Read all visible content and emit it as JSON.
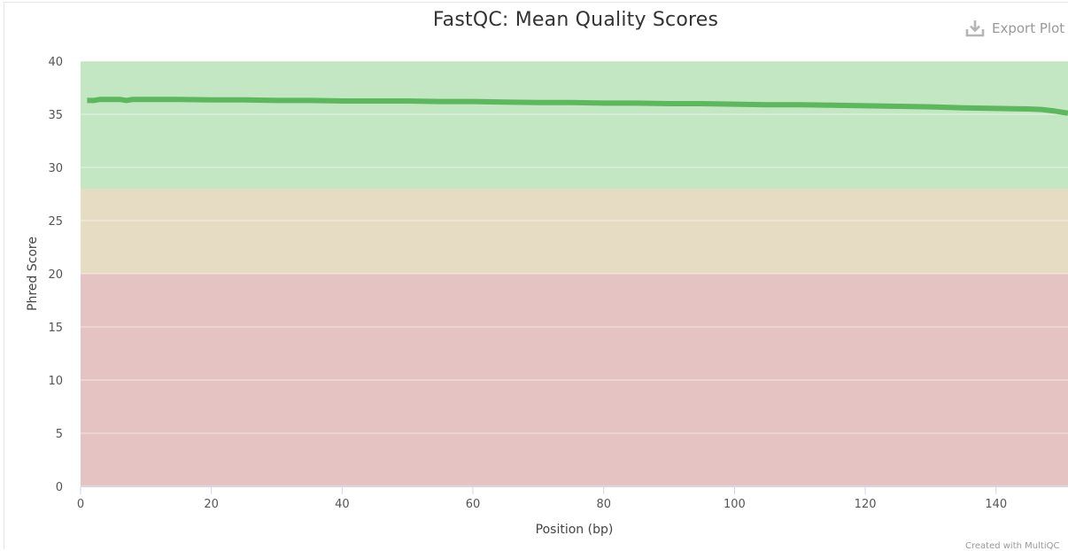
{
  "chart_data": {
    "type": "line",
    "title": "FastQC: Mean Quality Scores",
    "xlabel": "Position (bp)",
    "ylabel": "Phred Score",
    "xlim": [
      0,
      151
    ],
    "ylim": [
      0,
      40
    ],
    "x_ticks": [
      0,
      20,
      40,
      60,
      80,
      100,
      120,
      140
    ],
    "y_ticks": [
      0,
      5,
      10,
      15,
      20,
      25,
      30,
      35,
      40
    ],
    "grid": true,
    "legend": "none",
    "bands": [
      {
        "from": 28,
        "to": 40,
        "color": "#c3e6c3"
      },
      {
        "from": 20,
        "to": 28,
        "color": "#e6dcc3"
      },
      {
        "from": 0,
        "to": 20,
        "color": "#e6c3c3"
      }
    ],
    "series": [
      {
        "color": "#5cb85c",
        "x": [
          1,
          2,
          3,
          4,
          5,
          6,
          7,
          8,
          10,
          15,
          20,
          25,
          30,
          35,
          40,
          45,
          50,
          55,
          60,
          65,
          70,
          75,
          80,
          85,
          90,
          95,
          100,
          105,
          110,
          115,
          120,
          125,
          130,
          135,
          140,
          145,
          147,
          149,
          150,
          151
        ],
        "y": [
          36.3,
          36.3,
          36.4,
          36.4,
          36.4,
          36.4,
          36.3,
          36.4,
          36.4,
          36.4,
          36.35,
          36.35,
          36.3,
          36.3,
          36.25,
          36.25,
          36.25,
          36.2,
          36.2,
          36.15,
          36.1,
          36.1,
          36.05,
          36.05,
          36.0,
          36.0,
          35.95,
          35.9,
          35.9,
          35.85,
          35.8,
          35.75,
          35.7,
          35.6,
          35.55,
          35.5,
          35.45,
          35.3,
          35.2,
          35.1
        ]
      }
    ]
  },
  "toolbar": {
    "export_label": "Export Plot"
  },
  "footer": {
    "credit": "Created with MultiQC"
  }
}
